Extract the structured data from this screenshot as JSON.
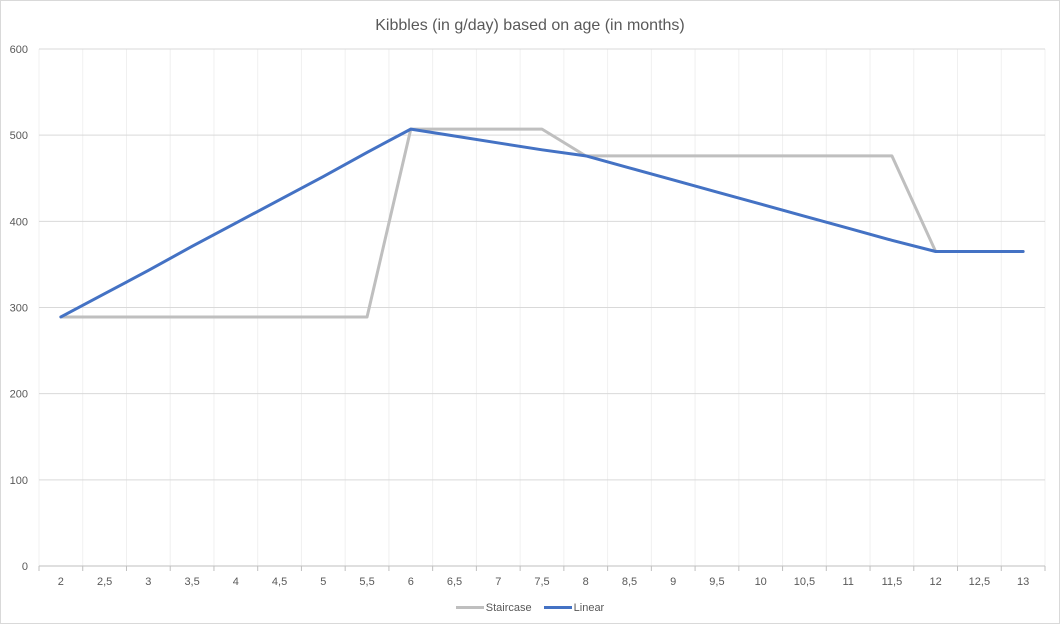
{
  "chart_data": {
    "type": "line",
    "title": "Kibbles (in g/day) based on age (in months)",
    "xlabel": "",
    "ylabel": "",
    "categories": [
      "2",
      "2,5",
      "3",
      "3,5",
      "4",
      "4,5",
      "5",
      "5,5",
      "6",
      "6,5",
      "7",
      "7,5",
      "8",
      "8,5",
      "9",
      "9,5",
      "10",
      "10,5",
      "11",
      "11,5",
      "12",
      "12,5",
      "13"
    ],
    "series": [
      {
        "name": "Staircase",
        "color": "#bfbfbf",
        "values": [
          289,
          289,
          289,
          289,
          289,
          289,
          289,
          289,
          507,
          507,
          507,
          507,
          476,
          476,
          476,
          476,
          476,
          476,
          476,
          476,
          365,
          365,
          365
        ]
      },
      {
        "name": "Linear",
        "color": "#4472c4",
        "values": [
          289,
          316,
          343,
          371,
          398,
          425,
          452,
          480,
          507,
          499,
          491,
          483,
          476,
          462,
          448,
          434,
          420,
          406,
          392,
          378,
          365,
          365,
          365
        ]
      }
    ],
    "ylim": [
      0,
      600
    ],
    "yticks": [
      "0",
      "100",
      "200",
      "300",
      "400",
      "500",
      "600"
    ],
    "grid": true,
    "legend_position": "bottom"
  }
}
